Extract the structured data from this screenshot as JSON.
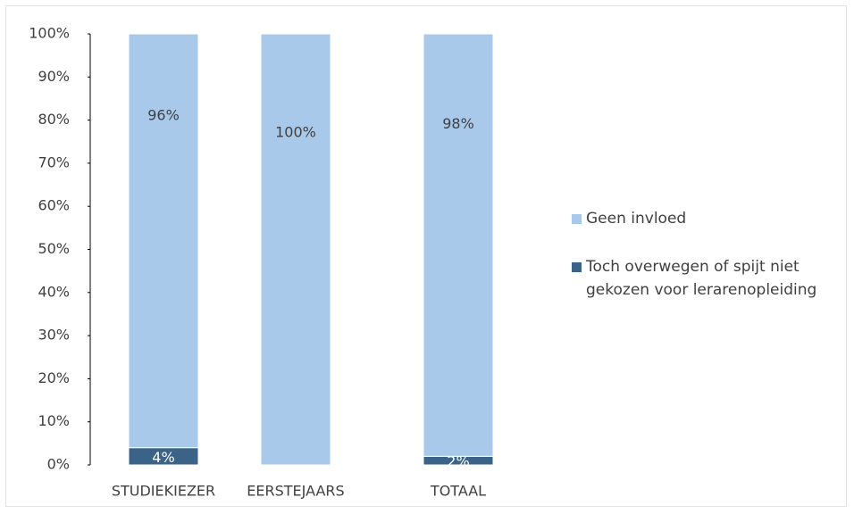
{
  "chart_data": {
    "type": "stacked_bar",
    "categories": [
      "STUDIEKIEZER",
      "EERSTEJAARS",
      "TOTAAL"
    ],
    "series": [
      {
        "name": "Toch overwegen of spijt niet gekozen voor lerarenopleiding",
        "color": "#3b6387",
        "values": [
          4,
          0,
          2
        ],
        "value_labels": [
          "4%",
          null,
          "2%"
        ]
      },
      {
        "name": "Geen invloed",
        "color": "#a9c9ea",
        "values": [
          96,
          100,
          98
        ],
        "value_labels": [
          "96%",
          "100%",
          "98%"
        ]
      }
    ],
    "ylim": [
      0,
      100
    ],
    "yticks": [
      {
        "value": 0,
        "label": "0%"
      },
      {
        "value": 10,
        "label": "10%"
      },
      {
        "value": 20,
        "label": "20%"
      },
      {
        "value": 30,
        "label": "30%"
      },
      {
        "value": 40,
        "label": "40%"
      },
      {
        "value": 50,
        "label": "50%"
      },
      {
        "value": 60,
        "label": "60%"
      },
      {
        "value": 70,
        "label": "70%"
      },
      {
        "value": 80,
        "label": "80%"
      },
      {
        "value": 90,
        "label": "90%"
      },
      {
        "value": 100,
        "label": "100%"
      }
    ],
    "grid": false,
    "legend": "right"
  }
}
